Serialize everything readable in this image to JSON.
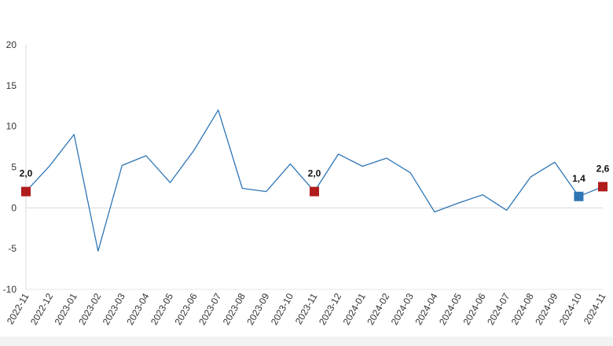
{
  "chart_data": {
    "type": "line",
    "title": "",
    "xlabel": "",
    "ylabel": "",
    "ylim": [
      -10,
      20
    ],
    "yticks": [
      -10,
      -5,
      0,
      5,
      10,
      15,
      20
    ],
    "grid": false,
    "legend": "none",
    "categories": [
      "2022-11",
      "2022-12",
      "2023-01",
      "2023-02",
      "2023-03",
      "2023-04",
      "2023-05",
      "2023-06",
      "2023-07",
      "2023-08",
      "2023-09",
      "2023-10",
      "2023-11",
      "2023-12",
      "2024-01",
      "2024-02",
      "2024-03",
      "2024-04",
      "2024-05",
      "2024-06",
      "2024-07",
      "2024-08",
      "2024-09",
      "2024-10",
      "2024-11"
    ],
    "series": [
      {
        "values": [
          2.0,
          5.2,
          9.0,
          -5.3,
          5.2,
          6.4,
          3.1,
          7.1,
          12.0,
          2.4,
          2.0,
          5.4,
          2.0,
          6.6,
          5.1,
          6.1,
          4.3,
          -0.5,
          0.6,
          1.6,
          -0.3,
          3.8,
          5.6,
          1.4,
          2.6
        ],
        "color": "#2e75b6"
      }
    ],
    "highlights": [
      {
        "index": 0,
        "label": "2,0",
        "color": "#b01c1c"
      },
      {
        "index": 12,
        "label": "2,0",
        "color": "#b01c1c"
      },
      {
        "index": 23,
        "label": "1,4",
        "color": "#2e75b6"
      },
      {
        "index": 24,
        "label": "2,6",
        "color": "#b01c1c"
      }
    ]
  }
}
